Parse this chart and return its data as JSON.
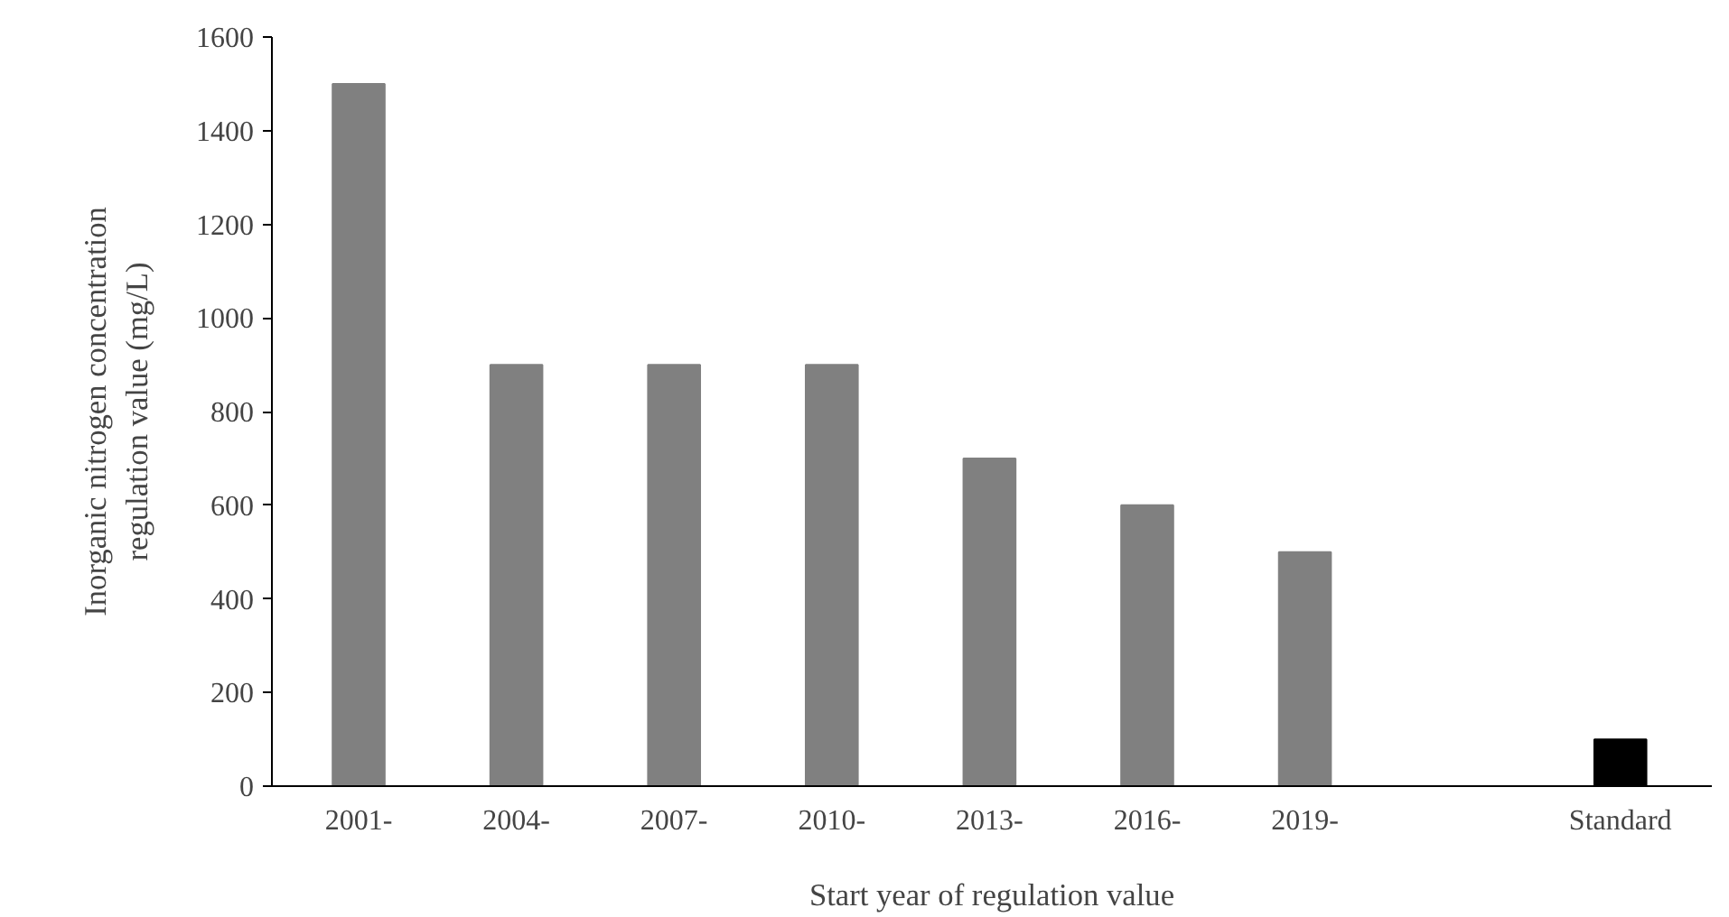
{
  "chart_data": {
    "type": "bar",
    "xlabel": "Start year of regulation value",
    "ylabel": "Inorganic nitrogen concentration\nregulation value (mg/L)",
    "categories": [
      "2001-",
      "2004-",
      "2007-",
      "2010-",
      "2013-",
      "2016-",
      "2019-",
      null,
      "Standard"
    ],
    "values": [
      1500,
      900,
      900,
      900,
      700,
      600,
      500,
      null,
      100
    ],
    "colors": [
      "#808080",
      "#808080",
      "#808080",
      "#808080",
      "#808080",
      "#808080",
      "#808080",
      "#808080",
      "#000000"
    ],
    "ylim": [
      0,
      1600
    ],
    "yticks": [
      0,
      200,
      400,
      600,
      800,
      1000,
      1200,
      1400,
      1600
    ],
    "grid": false
  }
}
